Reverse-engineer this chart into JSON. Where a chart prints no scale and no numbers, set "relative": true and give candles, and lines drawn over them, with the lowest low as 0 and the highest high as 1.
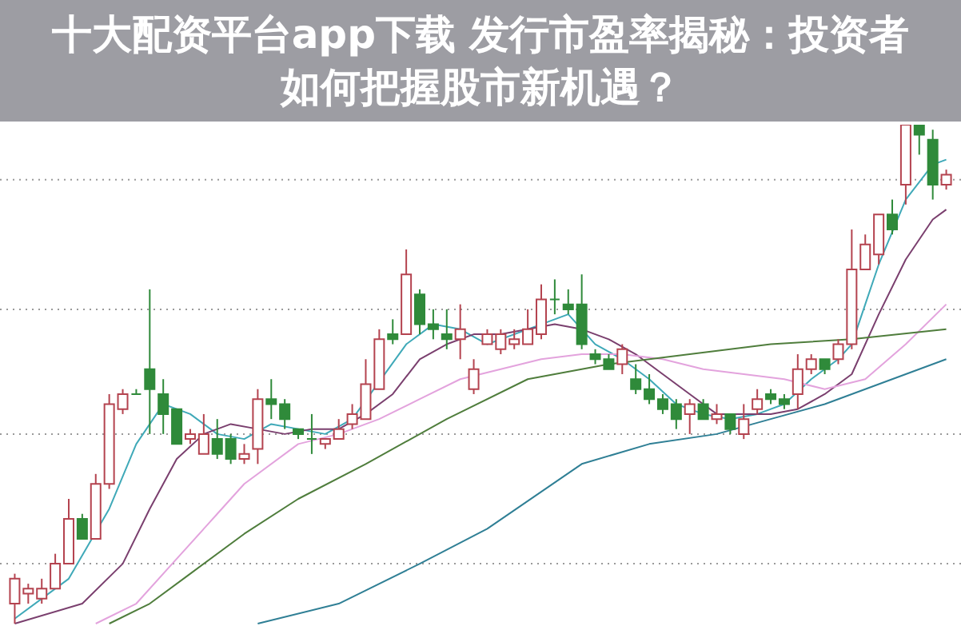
{
  "chart_data": {
    "type": "candlestick",
    "title": "十大配资平台app下载 发行市盈率揭秘：投资者如何把握股市新机遇？",
    "relative": true,
    "tick_labels": false,
    "categories": [
      null,
      null,
      null,
      null,
      null,
      null,
      null,
      null,
      null,
      null,
      null,
      null,
      null,
      null,
      null,
      null,
      null,
      null,
      null,
      null,
      null,
      null,
      null,
      null,
      null,
      null,
      null,
      null,
      null,
      null,
      null,
      null,
      null,
      null,
      null,
      null,
      null,
      null,
      null,
      null,
      null,
      null,
      null,
      null,
      null,
      null,
      null,
      null,
      null,
      null,
      null,
      null,
      null,
      null,
      null,
      null,
      null,
      null,
      null,
      null,
      null,
      null,
      null,
      null,
      null,
      null,
      null,
      null,
      null,
      null
    ],
    "ohlc": [
      [
        0.04,
        0.1,
        0,
        0.09
      ],
      [
        0.06,
        0.08,
        0.04,
        0.07
      ],
      [
        0.05,
        0.09,
        0.04,
        0.07
      ],
      [
        0.07,
        0.14,
        0.07,
        0.12
      ],
      [
        0.12,
        0.25,
        0.12,
        0.21
      ],
      [
        0.21,
        0.22,
        0.17,
        0.17
      ],
      [
        0.17,
        0.3,
        0.17,
        0.28
      ],
      [
        0.28,
        0.46,
        0.27,
        0.44
      ],
      [
        0.43,
        0.47,
        0.42,
        0.46
      ],
      [
        0.46,
        0.47,
        0.46,
        0.46
      ],
      [
        0.51,
        0.67,
        0.38,
        0.47
      ],
      [
        0.46,
        0.49,
        0.38,
        0.42
      ],
      [
        0.43,
        0.43,
        0.36,
        0.36
      ],
      [
        0.37,
        0.39,
        0.36,
        0.38
      ],
      [
        0.34,
        0.42,
        0.34,
        0.38
      ],
      [
        0.37,
        0.41,
        0.33,
        0.34
      ],
      [
        0.37,
        0.38,
        0.32,
        0.33
      ],
      [
        0.33,
        0.36,
        0.32,
        0.34
      ],
      [
        0.35,
        0.47,
        0.32,
        0.45
      ],
      [
        0.45,
        0.49,
        0.41,
        0.44
      ],
      [
        0.44,
        0.45,
        0.39,
        0.41
      ],
      [
        0.39,
        0.39,
        0.37,
        0.38
      ],
      [
        0.37,
        0.42,
        0.34,
        0.37
      ],
      [
        0.36,
        0.37,
        0.35,
        0.37
      ],
      [
        0.37,
        0.41,
        0.37,
        0.39
      ],
      [
        0.4,
        0.44,
        0.39,
        0.42
      ],
      [
        0.41,
        0.53,
        0.41,
        0.48
      ],
      [
        0.47,
        0.59,
        0.47,
        0.57
      ],
      [
        0.58,
        0.61,
        0.56,
        0.57
      ],
      [
        0.58,
        0.75,
        0.58,
        0.7
      ],
      [
        0.66,
        0.67,
        0.58,
        0.6
      ],
      [
        0.6,
        0.63,
        0.57,
        0.59
      ],
      [
        0.58,
        0.63,
        0.55,
        0.57
      ],
      [
        0.57,
        0.64,
        0.53,
        0.59
      ],
      [
        0.47,
        0.53,
        0.46,
        0.51
      ],
      [
        0.56,
        0.59,
        0.56,
        0.58
      ],
      [
        0.55,
        0.59,
        0.54,
        0.58
      ],
      [
        0.56,
        0.59,
        0.55,
        0.57
      ],
      [
        0.56,
        0.63,
        0.56,
        0.59
      ],
      [
        0.58,
        0.68,
        0.57,
        0.65
      ],
      [
        0.65,
        0.69,
        0.62,
        0.65
      ],
      [
        0.64,
        0.67,
        0.62,
        0.63
      ],
      [
        0.64,
        0.7,
        0.55,
        0.56
      ],
      [
        0.54,
        0.55,
        0.52,
        0.53
      ],
      [
        0.53,
        0.54,
        0.51,
        0.51
      ],
      [
        0.52,
        0.56,
        0.5,
        0.55
      ],
      [
        0.49,
        0.52,
        0.46,
        0.47
      ],
      [
        0.47,
        0.5,
        0.44,
        0.45
      ],
      [
        0.45,
        0.46,
        0.42,
        0.43
      ],
      [
        0.44,
        0.45,
        0.39,
        0.41
      ],
      [
        0.42,
        0.45,
        0.38,
        0.44
      ],
      [
        0.44,
        0.45,
        0.41,
        0.41
      ],
      [
        0.41,
        0.44,
        0.4,
        0.42
      ],
      [
        0.42,
        0.42,
        0.38,
        0.39
      ],
      [
        0.38,
        0.44,
        0.37,
        0.41
      ],
      [
        0.43,
        0.47,
        0.42,
        0.45
      ],
      [
        0.46,
        0.47,
        0.44,
        0.45
      ],
      [
        0.45,
        0.46,
        0.43,
        0.44
      ],
      [
        0.46,
        0.54,
        0.43,
        0.51
      ],
      [
        0.51,
        0.54,
        0.5,
        0.53
      ],
      [
        0.53,
        0.53,
        0.5,
        0.51
      ],
      [
        0.53,
        0.57,
        0.52,
        0.56
      ],
      [
        0.56,
        0.79,
        0.55,
        0.71
      ],
      [
        0.71,
        0.78,
        0.71,
        0.76
      ],
      [
        0.74,
        0.82,
        0.72,
        0.82
      ],
      [
        0.82,
        0.85,
        0.78,
        0.79
      ],
      [
        0.88,
        1,
        0.84,
        1
      ],
      [
        1,
        1,
        0.94,
        0.98
      ],
      [
        0.97,
        0.99,
        0.85,
        0.88
      ],
      [
        0.88,
        0.91,
        0.87,
        0.9
      ]
    ],
    "series": [
      {
        "type": "line",
        "color": "#3fa9b8",
        "values": [
          0.01,
          null,
          null,
          null,
          0.09,
          null,
          null,
          0.23,
          null,
          0.36,
          null,
          0.44,
          null,
          0.42,
          null,
          0.38,
          null,
          0.37,
          null,
          0.4,
          null,
          0.39,
          null,
          0.38,
          null,
          0.41,
          null,
          null,
          null,
          0.56,
          null,
          0.6,
          null,
          0.59,
          null,
          0.56,
          null,
          0.58,
          null,
          0.6,
          null,
          0.62,
          null,
          0.56,
          null,
          0.53,
          null,
          0.49,
          null,
          0.44,
          null,
          0.42,
          null,
          0.41,
          null,
          0.42,
          null,
          0.44,
          null,
          0.49,
          null,
          0.53,
          0.56,
          0.64,
          0.72,
          null,
          0.85,
          null,
          0.92,
          0.93
        ]
      },
      {
        "type": "line",
        "color": "#7a3f6e",
        "values": [
          0,
          null,
          null,
          null,
          null,
          0.04,
          null,
          null,
          0.12,
          null,
          0.23,
          null,
          0.33,
          null,
          0.38,
          null,
          0.4,
          null,
          0.39,
          null,
          0.38,
          null,
          0.39,
          null,
          0.39,
          null,
          0.42,
          null,
          0.46,
          null,
          0.53,
          null,
          0.56,
          null,
          0.58,
          null,
          0.58,
          null,
          0.59,
          null,
          0.6,
          null,
          0.59,
          null,
          0.57,
          null,
          0.54,
          null,
          0.5,
          null,
          0.46,
          null,
          0.42,
          null,
          0.42,
          null,
          0.42,
          null,
          0.43,
          null,
          0.46,
          null,
          0.5,
          null,
          0.62,
          null,
          0.73,
          null,
          0.81,
          0.83
        ]
      },
      {
        "type": "line",
        "color": "#e3a3dd",
        "values": [
          null,
          null,
          null,
          null,
          null,
          null,
          0,
          null,
          null,
          0.04,
          null,
          null,
          0.13,
          null,
          null,
          0.22,
          null,
          0.28,
          null,
          null,
          null,
          0.36,
          null,
          null,
          0.38,
          null,
          null,
          0.41,
          null,
          null,
          0.45,
          null,
          null,
          0.49,
          null,
          null,
          0.51,
          null,
          null,
          0.53,
          null,
          null,
          0.54,
          null,
          null,
          0.54,
          null,
          null,
          0.53,
          null,
          null,
          0.51,
          null,
          null,
          0.5,
          null,
          null,
          0.49,
          null,
          null,
          0.47,
          null,
          null,
          0.49,
          null,
          null,
          0.56,
          null,
          null,
          0.64
        ]
      },
      {
        "type": "line",
        "color": "#4f7d3c",
        "values": [
          null,
          null,
          null,
          null,
          null,
          null,
          null,
          0,
          null,
          null,
          0.04,
          null,
          null,
          0.1,
          null,
          null,
          null,
          0.18,
          null,
          null,
          null,
          0.25,
          null,
          null,
          null,
          null,
          0.32,
          null,
          null,
          null,
          null,
          null,
          0.41,
          null,
          null,
          null,
          null,
          null,
          0.49,
          null,
          null,
          null,
          null,
          null,
          0.52,
          null,
          null,
          null,
          null,
          null,
          0.54,
          null,
          null,
          null,
          null,
          null,
          0.56,
          null,
          null,
          null,
          null,
          null,
          0.57,
          null,
          null,
          null,
          null,
          null,
          null,
          0.59
        ]
      },
      {
        "type": "line",
        "color": "#2f7f95",
        "values": [
          null,
          null,
          null,
          null,
          null,
          null,
          null,
          null,
          null,
          null,
          null,
          null,
          null,
          null,
          null,
          null,
          null,
          null,
          0,
          null,
          null,
          null,
          null,
          null,
          0.04,
          null,
          null,
          null,
          null,
          null,
          0.12,
          null,
          null,
          null,
          null,
          0.19,
          null,
          null,
          null,
          null,
          null,
          null,
          0.32,
          null,
          null,
          null,
          null,
          0.36,
          null,
          null,
          null,
          null,
          0.38,
          null,
          null,
          null,
          0.41,
          null,
          null,
          null,
          0.44,
          null,
          null,
          null,
          null,
          0.49,
          null,
          null,
          null,
          0.53
        ]
      }
    ],
    "ref_lines": [
      {
        "axis": "y",
        "value": 0.89,
        "color": "#9a9a9a",
        "line_style": "dotted"
      },
      {
        "axis": "y",
        "value": 0.63,
        "color": "#9a9a9a",
        "line_style": "dotted"
      },
      {
        "axis": "y",
        "value": 0.38,
        "color": "#9a9a9a",
        "line_style": "dotted"
      },
      {
        "axis": "y",
        "value": 0.12,
        "color": "#9a9a9a",
        "line_style": "dotted"
      }
    ]
  }
}
